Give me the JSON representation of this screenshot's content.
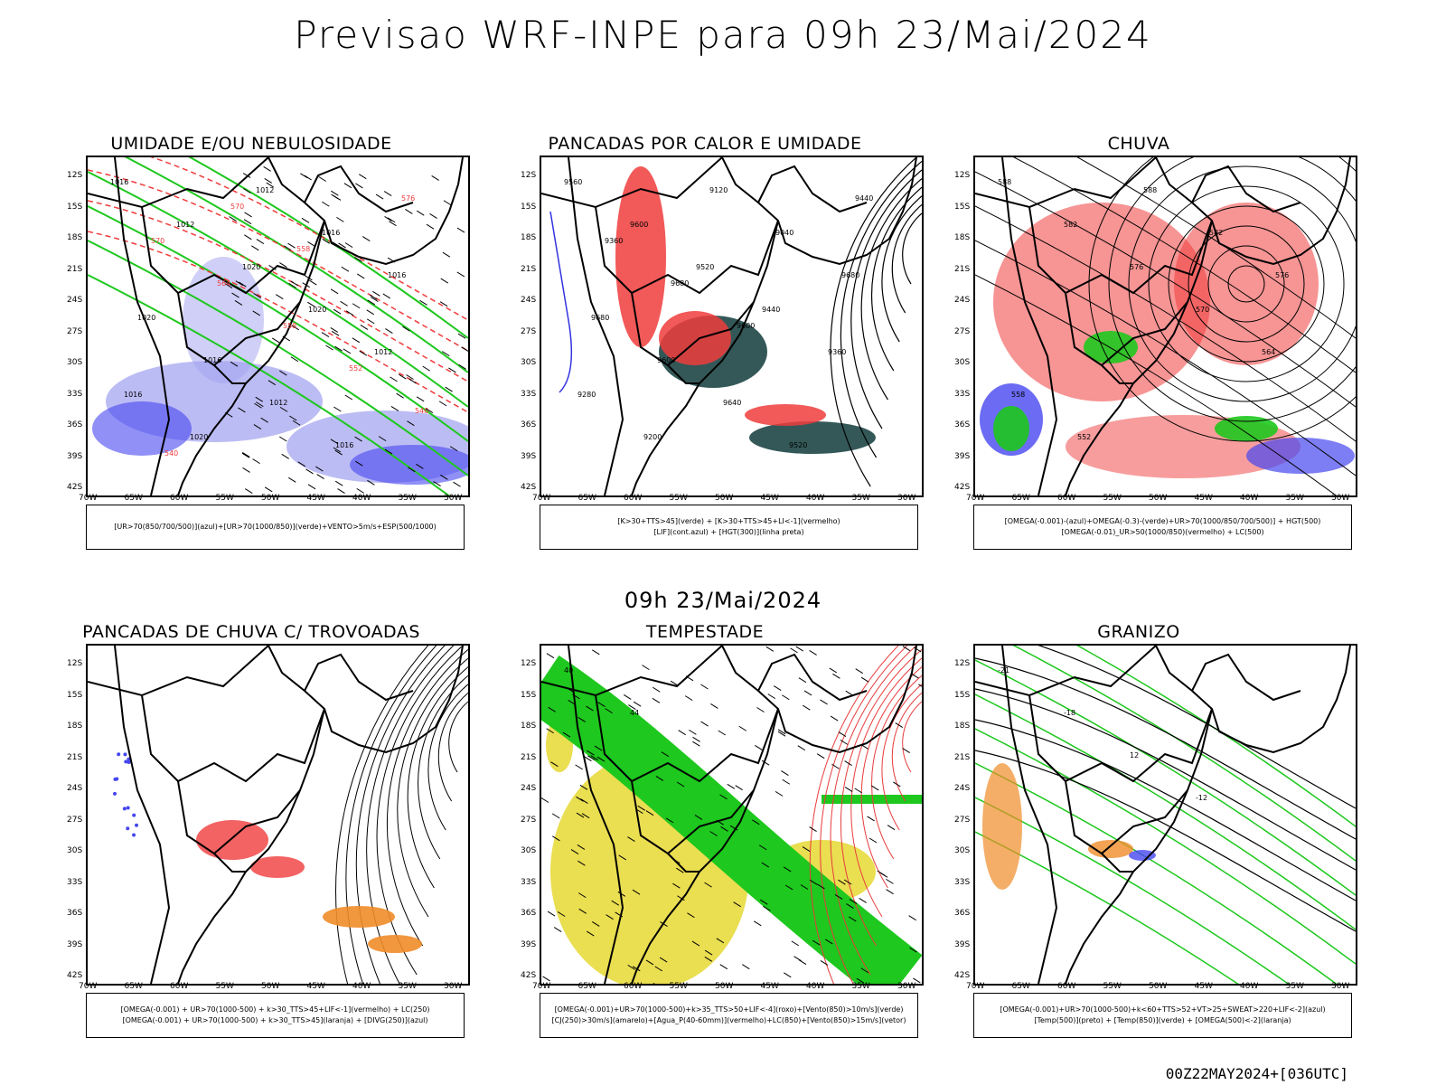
{
  "header": {
    "title": "Previsao WRF-INPE  para 09h 23/Mai/2024"
  },
  "middle": {
    "title": "09h 23/Mai/2024"
  },
  "footer": {
    "run": "00Z22MAY2024+[036UTC]"
  },
  "axes": {
    "lat_labels": [
      "12S",
      "15S",
      "18S",
      "21S",
      "24S",
      "27S",
      "30S",
      "33S",
      "36S",
      "39S",
      "42S"
    ],
    "lon_labels": [
      "70W",
      "65W",
      "60W",
      "55W",
      "50W",
      "45W",
      "40W",
      "35W",
      "30W"
    ]
  },
  "colors": {
    "red": "#f03c3c",
    "green": "#1ec81e",
    "blue": "#4646f0",
    "lightblue": "#a0a0f0",
    "darkgreen": "#1e4646",
    "yellow": "#e6d832",
    "orange": "#f08c28"
  },
  "panels": [
    {
      "id": "umidade",
      "title": "UMIDADE E/OU NEBULOSIDADE",
      "legend": [
        "[UR>70(850/700/500)](azul)+[UR>70(1000/850)](verde)+VENTO>5m/s+ESP(500/1000)"
      ],
      "labels": [
        "1016",
        "1012",
        "1020",
        "1020",
        "1012",
        "1016",
        "1020",
        "1012",
        "1016",
        "1016",
        "1020",
        "1016",
        "1012",
        "1016",
        "576",
        "570",
        "564",
        "558",
        "552",
        "546",
        "540",
        "570",
        "558"
      ]
    },
    {
      "id": "pancadas_calor",
      "title": "PANCADAS POR CALOR E UMIDADE",
      "legend": [
        "[K>30+TTS>45](verde) + [K>30+TTS>45+LI<-1](vermelho)",
        "[LIF](cont.azul) + [HGT(300)](linha preta)"
      ],
      "labels": [
        "9560",
        "9600",
        "9520",
        "9440",
        "9360",
        "9280",
        "9200",
        "9120",
        "9040",
        "9680",
        "9680",
        "9600",
        "9640",
        "9520",
        "9440",
        "9360",
        "9680",
        "9600"
      ]
    },
    {
      "id": "chuva",
      "title": "CHUVA",
      "legend": [
        "[OMEGA(-0.001)-(azul)+OMEGA(-0.3)-(verde)+UR>70(1000/850/700/500)] + HGT(500)",
        "[OMEGA(-0.01)_UR>50(1000/850)(vermelho) + LC(500)"
      ],
      "labels": [
        "588",
        "582",
        "576",
        "570",
        "564",
        "558",
        "552",
        "588",
        "582",
        "576"
      ]
    },
    {
      "id": "pancadas_trovoadas",
      "title": "PANCADAS DE CHUVA C/ TROVOADAS",
      "legend": [
        "[OMEGA(-0.001) + UR>70(1000-500) + k>30_TTS>45+LIF<-1](vermelho) + LC(250)",
        "[OMEGA(-0.001) + UR>70(1000-500) + k>30_TTS>45](laranja) + [DIVG(250)](azul)"
      ],
      "labels": []
    },
    {
      "id": "tempestade",
      "title": "TEMPESTADE",
      "legend": [
        "[OMEGA(-0.001)+UR>70(1000-500)+k>35_TTS>50+LIF<-4](roxo)+[Vento(850)>10m/s](verde)",
        "[CJ(250)>30m/s](amarelo)+[Agua_P(40-60mm)](vermelho)+LC(850)+[Vento(850)>15m/s](vetor)"
      ],
      "labels": [
        "40",
        "44"
      ]
    },
    {
      "id": "granizo",
      "title": "GRANIZO",
      "legend": [
        "[OMEGA(-0.001)+UR>70(1000-500)+k<60+TTS>52+VT>25+SWEAT>220+LIF<-2](azul)",
        "[Temp(500)](preto) + [Temp(850)](verde) + [OMEGA(500)<-2](laranja)"
      ],
      "labels": [
        "-21",
        "-18",
        "12",
        "-12"
      ]
    }
  ]
}
